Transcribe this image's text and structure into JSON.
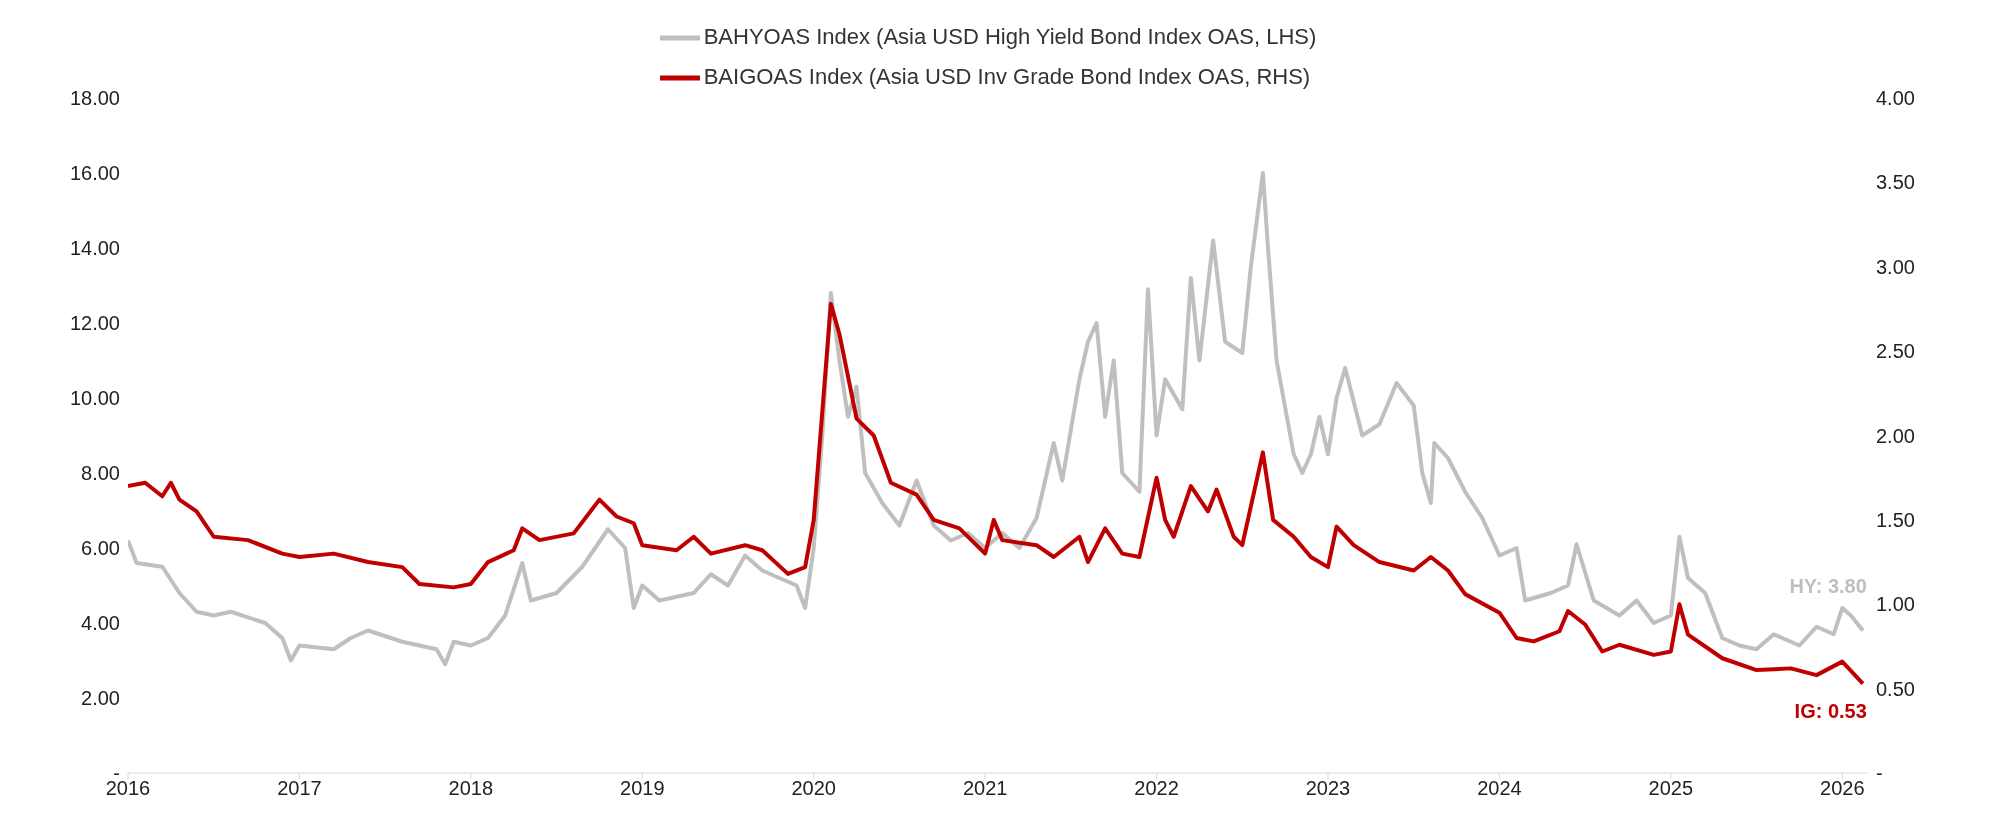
{
  "chart_data": {
    "type": "line",
    "legend": "top",
    "marker": "none",
    "line_style": "solid",
    "xlim": [
      2016,
      2026.15
    ],
    "xticks": [
      2016,
      2017,
      2018,
      2019,
      2020,
      2021,
      2022,
      2023,
      2024,
      2025,
      2026
    ],
    "ylim": [
      0,
      18
    ],
    "yticks": [
      {
        "value": 0,
        "label": "-"
      },
      {
        "value": 2,
        "label": "2.00"
      },
      {
        "value": 4,
        "label": "4.00"
      },
      {
        "value": 6,
        "label": "6.00"
      },
      {
        "value": 8,
        "label": "8.00"
      },
      {
        "value": 10,
        "label": "10.00"
      },
      {
        "value": 12,
        "label": "12.00"
      },
      {
        "value": 14,
        "label": "14.00"
      },
      {
        "value": 16,
        "label": "16.00"
      },
      {
        "value": 18,
        "label": "18.00"
      }
    ],
    "y2lim": [
      0,
      4
    ],
    "y2ticks": [
      {
        "value": 0,
        "label": "-"
      },
      {
        "value": 0.5,
        "label": "0.50"
      },
      {
        "value": 1,
        "label": "1.00"
      },
      {
        "value": 1.5,
        "label": "1.50"
      },
      {
        "value": 2,
        "label": "2.00"
      },
      {
        "value": 2.5,
        "label": "2.50"
      },
      {
        "value": 3,
        "label": "3.00"
      },
      {
        "value": 3.5,
        "label": "3.50"
      },
      {
        "value": 4,
        "label": "4.00"
      }
    ],
    "annotations": [
      "HY: 3.80",
      "IG: 0.53"
    ],
    "series": [
      {
        "name": "BAHYOAS Index (Asia USD High Yield Bond Index OAS, LHS)",
        "color": "#bfbfbf",
        "x": [
          2016,
          2016.05,
          2016.2,
          2016.3,
          2016.4,
          2016.5,
          2016.6,
          2016.8,
          2016.9,
          2016.95,
          2017,
          2017.2,
          2017.3,
          2017.4,
          2017.6,
          2017.8,
          2017.85,
          2017.9,
          2018,
          2018.1,
          2018.2,
          2018.3,
          2018.35,
          2018.5,
          2018.65,
          2018.8,
          2018.9,
          2018.95,
          2019,
          2019.1,
          2019.3,
          2019.4,
          2019.5,
          2019.6,
          2019.7,
          2019.9,
          2019.95,
          2020,
          2020.05,
          2020.1,
          2020.15,
          2020.2,
          2020.25,
          2020.3,
          2020.4,
          2020.5,
          2020.6,
          2020.7,
          2020.8,
          2020.9,
          2021,
          2021.1,
          2021.2,
          2021.3,
          2021.4,
          2021.45,
          2021.55,
          2021.6,
          2021.65,
          2021.7,
          2021.75,
          2021.8,
          2021.9,
          2021.95,
          2022,
          2022.05,
          2022.15,
          2022.2,
          2022.25,
          2022.33,
          2022.4,
          2022.5,
          2022.55,
          2022.62,
          2022.65,
          2022.7,
          2022.8,
          2022.85,
          2022.9,
          2022.95,
          2023,
          2023.05,
          2023.1,
          2023.2,
          2023.3,
          2023.4,
          2023.5,
          2023.55,
          2023.6,
          2023.62,
          2023.7,
          2023.8,
          2023.9,
          2024,
          2024.1,
          2024.15,
          2024.3,
          2024.4,
          2024.45,
          2024.55,
          2024.7,
          2024.8,
          2024.9,
          2025,
          2025.05,
          2025.1,
          2025.2,
          2025.3,
          2025.4,
          2025.5,
          2025.6,
          2025.75,
          2025.85,
          2025.95,
          2026,
          2026.05,
          2026.12
        ],
        "values": [
          6.2,
          5.6,
          5.5,
          4.8,
          4.3,
          4.2,
          4.3,
          4.0,
          3.6,
          3.0,
          3.4,
          3.3,
          3.6,
          3.8,
          3.5,
          3.3,
          2.9,
          3.5,
          3.4,
          3.6,
          4.2,
          5.6,
          4.6,
          4.8,
          5.5,
          6.5,
          6.0,
          4.4,
          5.0,
          4.6,
          4.8,
          5.3,
          5.0,
          5.8,
          5.4,
          5.0,
          4.4,
          6.0,
          9.0,
          12.8,
          11.0,
          9.5,
          10.3,
          8.0,
          7.2,
          6.6,
          7.8,
          6.6,
          6.2,
          6.4,
          6.0,
          6.4,
          6.0,
          6.8,
          8.8,
          7.8,
          10.5,
          11.5,
          12.0,
          9.5,
          11.0,
          8.0,
          7.5,
          12.9,
          9.0,
          10.5,
          9.7,
          13.2,
          11.0,
          14.2,
          11.5,
          11.2,
          13.5,
          16.0,
          14.0,
          11.0,
          8.5,
          8.0,
          8.5,
          9.5,
          8.5,
          10.0,
          10.8,
          9.0,
          9.3,
          10.4,
          9.8,
          8.0,
          7.2,
          8.8,
          8.4,
          7.5,
          6.8,
          5.8,
          6.0,
          4.6,
          4.8,
          5.0,
          6.1,
          4.6,
          4.2,
          4.6,
          4.0,
          4.2,
          6.3,
          5.2,
          4.8,
          3.6,
          3.4,
          3.3,
          3.7,
          3.4,
          3.9,
          3.7,
          4.4,
          4.2,
          3.8
        ]
      },
      {
        "name": "BAIGOAS Index (Asia USD Inv Grade Bond Index OAS, RHS)",
        "color": "#c00000",
        "axis": "y2",
        "x": [
          2016,
          2016.1,
          2016.2,
          2016.25,
          2016.3,
          2016.4,
          2016.5,
          2016.7,
          2016.9,
          2017,
          2017.2,
          2017.4,
          2017.6,
          2017.7,
          2017.9,
          2018,
          2018.1,
          2018.25,
          2018.3,
          2018.4,
          2018.6,
          2018.75,
          2018.85,
          2018.95,
          2019,
          2019.2,
          2019.3,
          2019.4,
          2019.6,
          2019.7,
          2019.85,
          2019.95,
          2020,
          2020.1,
          2020.15,
          2020.25,
          2020.35,
          2020.45,
          2020.6,
          2020.7,
          2020.85,
          2021,
          2021.05,
          2021.1,
          2021.3,
          2021.4,
          2021.55,
          2021.6,
          2021.7,
          2021.8,
          2021.9,
          2022,
          2022.05,
          2022.1,
          2022.2,
          2022.3,
          2022.35,
          2022.45,
          2022.5,
          2022.62,
          2022.68,
          2022.8,
          2022.9,
          2023,
          2023.05,
          2023.15,
          2023.3,
          2023.5,
          2023.6,
          2023.7,
          2023.8,
          2024,
          2024.1,
          2024.2,
          2024.35,
          2024.4,
          2024.5,
          2024.6,
          2024.7,
          2024.9,
          2025,
          2025.05,
          2025.1,
          2025.3,
          2025.5,
          2025.7,
          2025.85,
          2026,
          2026.12
        ],
        "values": [
          1.7,
          1.72,
          1.64,
          1.72,
          1.62,
          1.55,
          1.4,
          1.38,
          1.3,
          1.28,
          1.3,
          1.25,
          1.22,
          1.12,
          1.1,
          1.12,
          1.25,
          1.32,
          1.45,
          1.38,
          1.42,
          1.62,
          1.52,
          1.48,
          1.35,
          1.32,
          1.4,
          1.3,
          1.35,
          1.32,
          1.18,
          1.22,
          1.5,
          2.78,
          2.6,
          2.1,
          2.0,
          1.72,
          1.65,
          1.5,
          1.45,
          1.3,
          1.5,
          1.38,
          1.35,
          1.28,
          1.4,
          1.25,
          1.45,
          1.3,
          1.28,
          1.75,
          1.5,
          1.4,
          1.7,
          1.55,
          1.68,
          1.4,
          1.35,
          1.9,
          1.5,
          1.4,
          1.28,
          1.22,
          1.46,
          1.35,
          1.25,
          1.2,
          1.28,
          1.2,
          1.06,
          0.95,
          0.8,
          0.78,
          0.84,
          0.96,
          0.88,
          0.72,
          0.76,
          0.7,
          0.72,
          1.0,
          0.82,
          0.68,
          0.61,
          0.62,
          0.58,
          0.66,
          0.53
        ]
      }
    ]
  }
}
